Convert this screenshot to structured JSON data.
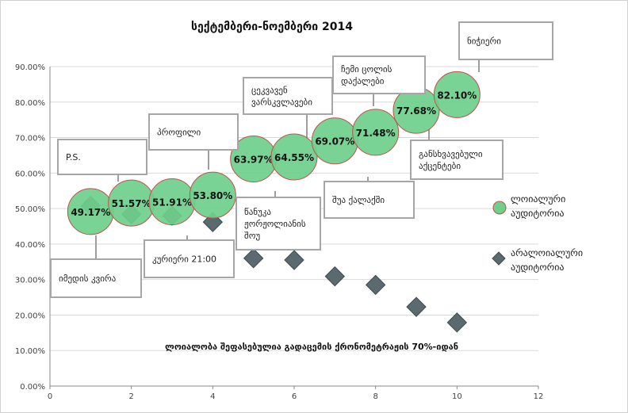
{
  "chart_data": {
    "type": "scatter",
    "title": "სექტემბერი-ნოემბერი 2014",
    "xlim": [
      0,
      12
    ],
    "ylim": [
      0,
      0.9
    ],
    "x_ticks": [
      "0",
      "2",
      "4",
      "6",
      "8",
      "10",
      "12"
    ],
    "y_ticks": [
      "0.00%",
      "10.00%",
      "20.00%",
      "30.00%",
      "40.00%",
      "50.00%",
      "60.00%",
      "70.00%",
      "80.00%",
      "90.00%"
    ],
    "grid": true,
    "legend_position": "right",
    "annotation": "ლოიალობა შეფასებულია გადაცემის ქრონომეტრაჟის 70%-იდან",
    "series": [
      {
        "name": "ლოიალური აუდიტორია",
        "color": "#6ecf8b",
        "marker": "bubble",
        "x": [
          1,
          2,
          3,
          4,
          5,
          6,
          7,
          8,
          9,
          10
        ],
        "y": [
          0.4917,
          0.5157,
          0.5191,
          0.538,
          0.6397,
          0.6455,
          0.6907,
          0.7148,
          0.7768,
          0.821
        ],
        "data_labels": [
          "49.17%",
          "51.57%",
          "51.91%",
          "53.80%",
          "63.97%",
          "64.55%",
          "69.07%",
          "71.48%",
          "77.68%",
          "82.10%"
        ]
      },
      {
        "name": "არალოიალური აუდიტორია",
        "color": "#5a6a6f",
        "marker": "diamond",
        "x": [
          1,
          2,
          3,
          4,
          5,
          6,
          7,
          8,
          9,
          10
        ],
        "y": [
          0.508,
          0.484,
          0.48,
          0.462,
          0.36,
          0.355,
          0.309,
          0.285,
          0.223,
          0.179
        ]
      }
    ],
    "callouts": [
      {
        "point": 1,
        "text": [
          "იმედის კვირა"
        ]
      },
      {
        "point": 2,
        "text": [
          "P.S."
        ]
      },
      {
        "point": 3,
        "text": [
          "კურიერი 21:00"
        ]
      },
      {
        "point": 4,
        "text": [
          "პროფილი"
        ]
      },
      {
        "point": 6,
        "text": [
          "წანუკა",
          "ჟორჟოლიანის",
          "შოუ"
        ]
      },
      {
        "point": 6,
        "text": [
          "ცეკვავენ",
          "ვარსკვლავები"
        ]
      },
      {
        "point": 7,
        "text": [
          "შუა ქალაქში"
        ]
      },
      {
        "point": 8,
        "text": [
          "ჩემი ცოლის",
          "დაქალები"
        ]
      },
      {
        "point": 9,
        "text": [
          "განსხვავებული",
          "აქცენტები"
        ]
      },
      {
        "point": 10,
        "text": [
          "ნიჭიერი"
        ]
      }
    ]
  }
}
